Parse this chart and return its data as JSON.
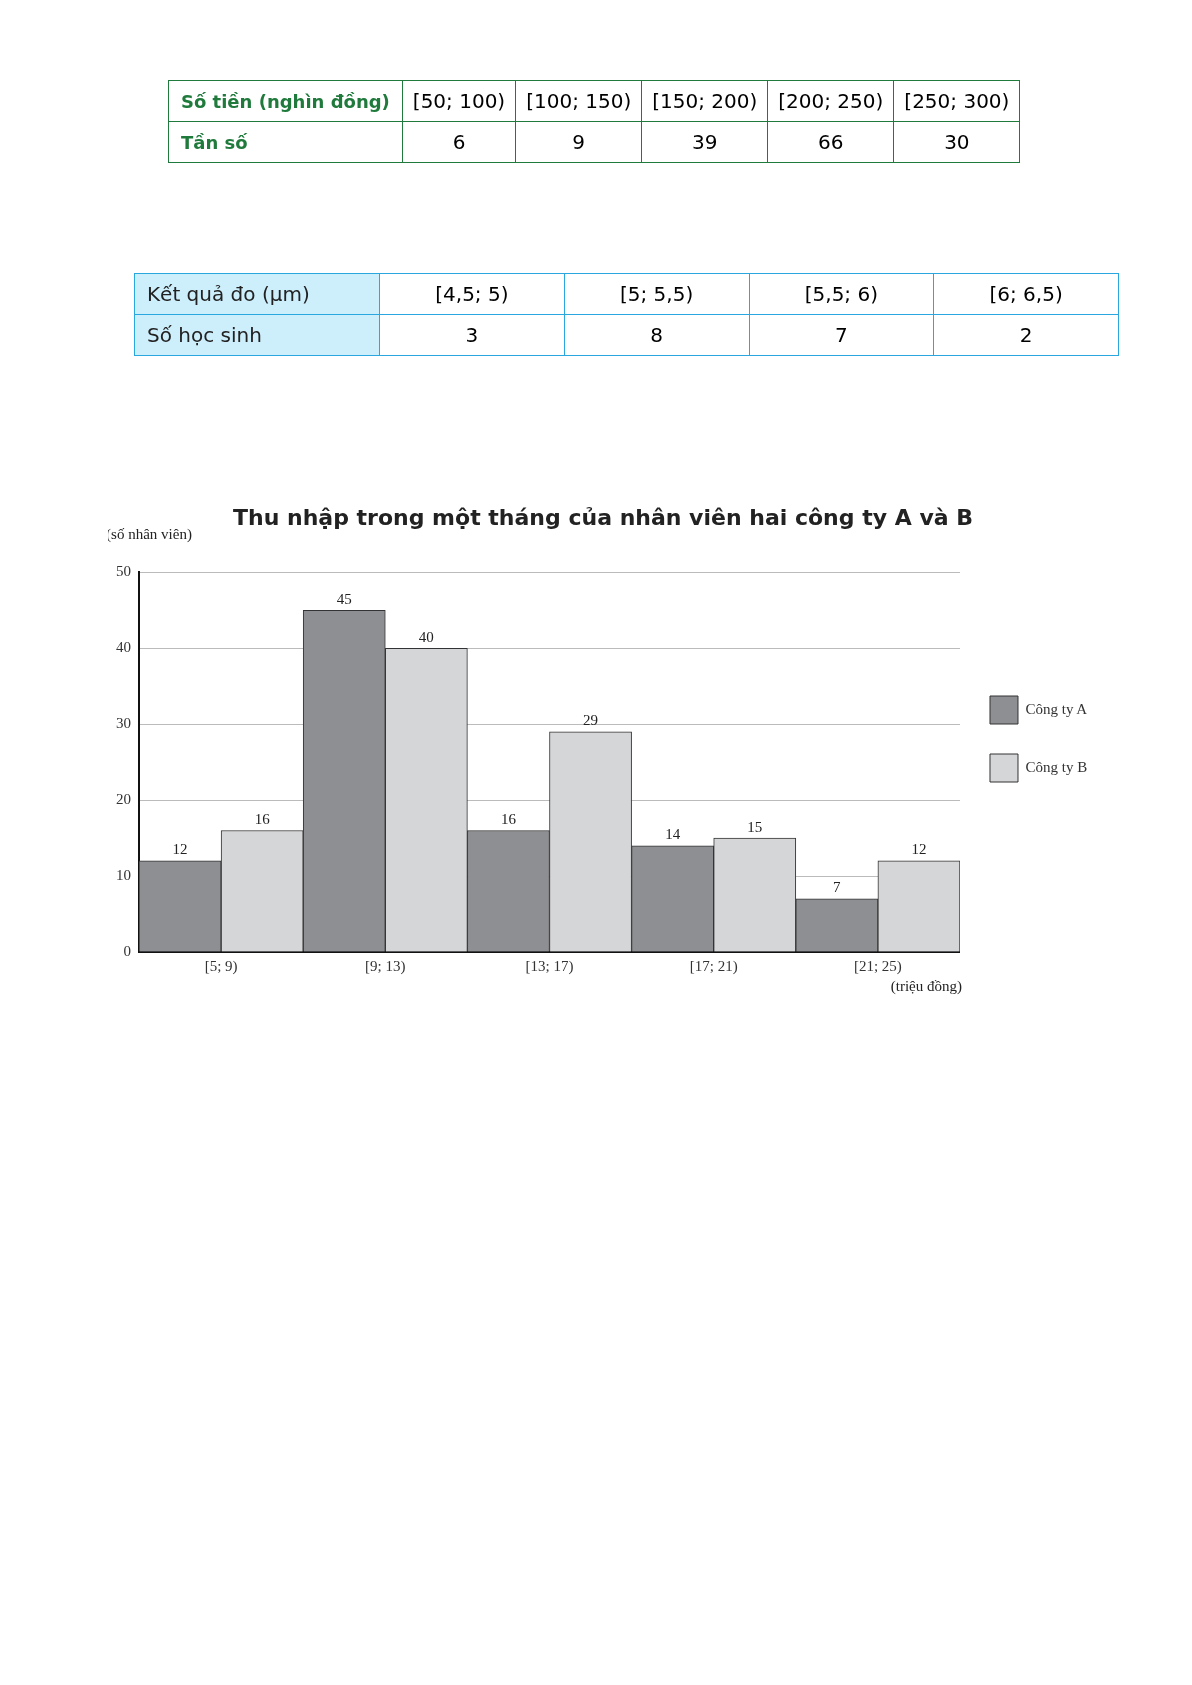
{
  "chart_data": [
    {
      "type": "other",
      "xlabel": "Số tiền (nghìn đồng)",
      "ylabel": "Tần số",
      "categories": [
        "[50; 100)",
        "[100; 150)",
        "[150; 200)",
        "[200; 250)",
        "[250; 300)"
      ],
      "values": [
        6,
        9,
        39,
        66,
        30
      ],
      "color": "#1f7a3c",
      "data_labels": true
    },
    {
      "type": "other",
      "xlabel": "Kết quả đo (μm)",
      "ylabel": "Số học sinh",
      "categories": [
        "[4,5; 5)",
        "[5; 5,5)",
        "[5,5; 6)",
        "[6; 6,5)"
      ],
      "values": [
        3,
        8,
        7,
        2
      ],
      "color": "#2aa7df",
      "data_labels": true
    },
    {
      "type": "bar",
      "title": "Thu nhập trong một tháng của nhân viên hai công ty A và B",
      "xlabel": "(triệu đồng)",
      "ylabel": "(số nhân viên)",
      "categories": [
        "[5; 9)",
        "[9; 13)",
        "[13; 17)",
        "[17; 21)",
        "[21; 25)"
      ],
      "series": [
        {
          "name": "Công ty A",
          "color": "#8e8f92",
          "values": [
            12,
            45,
            16,
            14,
            7
          ]
        },
        {
          "name": "Công ty B",
          "color": "#d5d6d8",
          "values": [
            16,
            40,
            29,
            15,
            12
          ]
        }
      ],
      "ylim": [
        0,
        50
      ],
      "yticks": [
        0,
        10,
        20,
        30,
        40,
        50
      ],
      "grid": "y",
      "legend": "right",
      "data_labels": true
    }
  ]
}
